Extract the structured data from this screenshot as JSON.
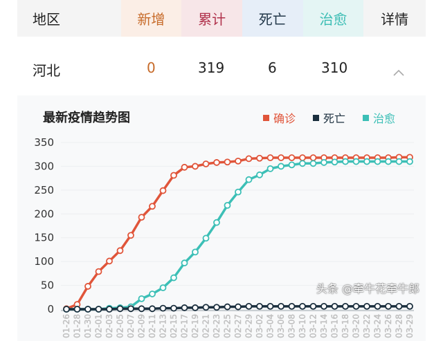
{
  "table": {
    "headers": [
      {
        "label": "地区",
        "color": "#222222",
        "bg": "#f4f4f4"
      },
      {
        "label": "新增",
        "color": "#c76b2a",
        "bg": "#fbeee6"
      },
      {
        "label": "累计",
        "color": "#b0314b",
        "bg": "#f7e6e8"
      },
      {
        "label": "死亡",
        "color": "#23384a",
        "bg": "#e6eef8"
      },
      {
        "label": "治愈",
        "color": "#3bbdb4",
        "bg": "#e4f5f4"
      },
      {
        "label": "详情",
        "color": "#222222",
        "bg": "#f4f4f4"
      }
    ],
    "row": {
      "region": "河北",
      "new": "0",
      "total": "319",
      "deaths": "6",
      "cured": "310",
      "toggle_icon": "chevron-up-icon"
    }
  },
  "chart_data": {
    "type": "line",
    "title": "最新疫情趋势图",
    "legend_position": "top-right",
    "grid": true,
    "ylim": [
      0,
      350
    ],
    "yticks": [
      0,
      50,
      100,
      150,
      200,
      250,
      300,
      350
    ],
    "x": [
      "01-26",
      "01-28",
      "01-30",
      "02-01",
      "02-03",
      "02-05",
      "02-07",
      "02-09",
      "02-11",
      "02-13",
      "02-15",
      "02-17",
      "02-19",
      "02-21",
      "02-23",
      "02-25",
      "02-27",
      "02-29",
      "03-02",
      "03-04",
      "03-06",
      "03-08",
      "03-10",
      "03-12",
      "03-14",
      "03-16",
      "03-18",
      "03-20",
      "03-22",
      "03-24",
      "03-26",
      "03-28",
      "03-29"
    ],
    "series": [
      {
        "name": "确诊",
        "color": "#e0553a",
        "values": [
          1,
          10,
          48,
          79,
          101,
          123,
          155,
          193,
          216,
          249,
          281,
          298,
          300,
          305,
          308,
          309,
          311,
          316,
          317,
          318,
          318,
          318,
          318,
          318,
          318,
          318,
          318,
          318,
          318,
          318,
          318,
          319,
          319
        ]
      },
      {
        "name": "死亡",
        "color": "#1b2f3e",
        "values": [
          0,
          0,
          0,
          0,
          0,
          1,
          1,
          1,
          1,
          2,
          2,
          3,
          3,
          4,
          4,
          5,
          5,
          6,
          6,
          6,
          6,
          6,
          6,
          6,
          6,
          6,
          6,
          6,
          6,
          6,
          6,
          6,
          6
        ]
      },
      {
        "name": "治愈",
        "color": "#3cbfb6",
        "values": [
          0,
          0,
          0,
          0,
          2,
          3,
          5,
          22,
          32,
          45,
          66,
          97,
          120,
          149,
          182,
          218,
          246,
          272,
          282,
          295,
          300,
          303,
          306,
          306,
          308,
          309,
          310,
          310,
          310,
          310,
          310,
          310,
          310
        ]
      }
    ]
  },
  "watermark": "头条 @牵牛花牵牛郎"
}
